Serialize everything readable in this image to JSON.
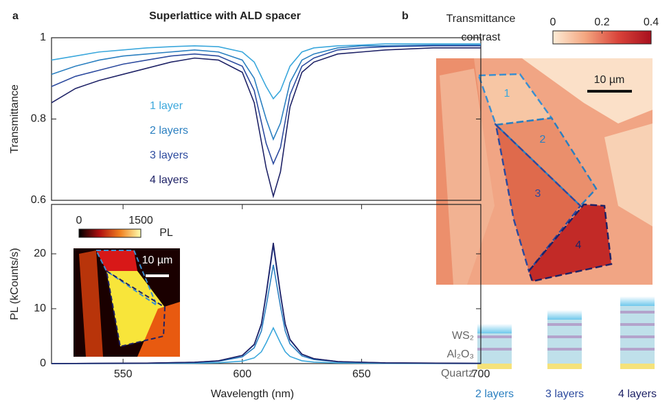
{
  "chart_data": [
    {
      "type": "line",
      "title": "Superlattice with ALD spacer",
      "ylabel": "Transmittance",
      "x": [
        520,
        530,
        540,
        550,
        560,
        570,
        580,
        590,
        600,
        605,
        610,
        613,
        616,
        620,
        625,
        630,
        640,
        650,
        660,
        680,
        700
      ],
      "series": [
        {
          "name": "1 layer",
          "color": "#3aa7dc",
          "values": [
            0.945,
            0.955,
            0.965,
            0.97,
            0.975,
            0.978,
            0.98,
            0.978,
            0.965,
            0.94,
            0.88,
            0.85,
            0.87,
            0.93,
            0.965,
            0.975,
            0.98,
            0.982,
            0.985,
            0.985,
            0.985
          ]
        },
        {
          "name": "2 layers",
          "color": "#2a7fc0",
          "values": [
            0.91,
            0.93,
            0.945,
            0.955,
            0.96,
            0.965,
            0.97,
            0.965,
            0.945,
            0.9,
            0.8,
            0.75,
            0.79,
            0.89,
            0.945,
            0.96,
            0.975,
            0.98,
            0.98,
            0.982,
            0.982
          ]
        },
        {
          "name": "3 layers",
          "color": "#2c4a9e",
          "values": [
            0.88,
            0.905,
            0.92,
            0.935,
            0.945,
            0.955,
            0.96,
            0.955,
            0.93,
            0.87,
            0.74,
            0.69,
            0.73,
            0.86,
            0.93,
            0.95,
            0.97,
            0.975,
            0.978,
            0.98,
            0.98
          ]
        },
        {
          "name": "4 layers",
          "color": "#1e2266",
          "values": [
            0.84,
            0.875,
            0.895,
            0.91,
            0.925,
            0.94,
            0.95,
            0.945,
            0.915,
            0.84,
            0.68,
            0.61,
            0.67,
            0.83,
            0.915,
            0.94,
            0.96,
            0.965,
            0.97,
            0.975,
            0.975
          ]
        }
      ],
      "xlim": [
        520,
        700
      ],
      "ylim": [
        0.6,
        1
      ],
      "yticks": [
        0.6,
        0.8,
        1
      ]
    },
    {
      "type": "line",
      "xlabel": "Wavelength (nm)",
      "ylabel": "PL (kCounts/s)",
      "x": [
        520,
        560,
        580,
        590,
        600,
        605,
        608,
        610,
        613,
        616,
        618,
        620,
        625,
        630,
        640,
        660,
        700
      ],
      "series": [
        {
          "color": "#3aa7dc",
          "values": [
            0,
            0.03,
            0.07,
            0.15,
            0.44,
            1.04,
            2.15,
            3.77,
            6.5,
            3.77,
            2.15,
            1.3,
            0.51,
            0.27,
            0.11,
            0.04,
            0.01
          ]
        },
        {
          "color": "#2a7fc0",
          "values": [
            0,
            0.07,
            0.2,
            0.41,
            1.22,
            2.88,
            5.94,
            10.44,
            18,
            10.44,
            5.94,
            3.6,
            1.4,
            0.74,
            0.31,
            0.11,
            0.04
          ]
        },
        {
          "color": "#2c4a9e",
          "values": [
            0,
            0.09,
            0.24,
            0.49,
            1.46,
            3.44,
            7.1,
            12.47,
            21.5,
            12.47,
            7.1,
            4.3,
            1.68,
            0.88,
            0.37,
            0.13,
            0.04
          ]
        },
        {
          "color": "#1e2266",
          "values": [
            0,
            0.09,
            0.24,
            0.51,
            1.5,
            3.52,
            7.26,
            12.76,
            22,
            12.76,
            7.26,
            4.4,
            1.72,
            0.9,
            0.37,
            0.13,
            0.04
          ]
        }
      ],
      "xlim": [
        520,
        700
      ],
      "xticks": [
        550,
        600,
        650,
        700
      ],
      "ylim": [
        0,
        29
      ],
      "yticks": [
        0,
        10,
        20
      ]
    },
    {
      "type": "colorbar",
      "label": "PL",
      "xlim": [
        0,
        1500
      ],
      "xticks": [
        0,
        1500
      ],
      "colors": [
        "#000000",
        "#b01010",
        "#f08020",
        "#ffffb0"
      ]
    },
    {
      "type": "colorbar",
      "title": [
        "Transmittance",
        "contrast"
      ],
      "xlim": [
        0,
        0.4
      ],
      "xticks": [
        0,
        0.2,
        0.4
      ],
      "colors": [
        "#fdecd6",
        "#f3a57f",
        "#d9433a",
        "#a8101e"
      ]
    }
  ],
  "panels": {
    "labels": [
      "a",
      "b"
    ]
  },
  "inset": {
    "scale_bar": "10 µm"
  },
  "map": {
    "scale_bar": "10 µm",
    "regions": [
      "1",
      "2",
      "3",
      "4"
    ]
  },
  "schematic": {
    "layers": [
      "WS₂",
      "Al₂O₃",
      "Quartz"
    ],
    "stacks": [
      "2 layers",
      "3 layers",
      "4 layers"
    ]
  }
}
